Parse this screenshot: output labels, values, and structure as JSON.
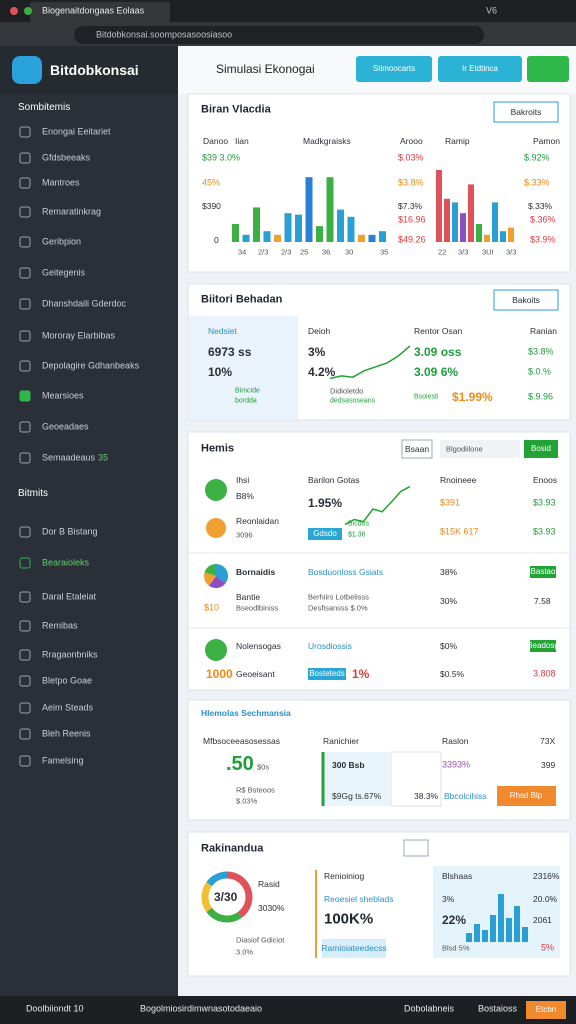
{
  "browser": {
    "tab_title": "Biogenaitdongaas Eolaas",
    "url": "Bitdobkonsai.soomposasoosiasoo",
    "badge": "V6"
  },
  "sidebar": {
    "brand": "Bitdobkonsai",
    "section1": "Sombitemis",
    "items1": [
      "Enongai Eeitariet",
      "Gfdsbeeaks",
      "Mantroes",
      "Remaratinkrag",
      "Geribpion",
      "Geitegenis",
      "Dhanshdaili Gderdoc",
      "Mororay Elarbibas",
      "Depolagire Gdhanbeaks",
      "Mearsioes",
      "Geoeadaes",
      "Semaadeaus"
    ],
    "badge": "35",
    "section2": "Bitmits",
    "items2": [
      "Dor B Bistang",
      "Bearaioleks",
      "Daral Etaleiat",
      "Remibas",
      "Rragaonbniks",
      "Bletpo Goae",
      "Aeim Steads",
      "Bleh Reenis",
      "Famelsing"
    ]
  },
  "header": {
    "title": "Simulasi Ekonogai",
    "buttons": [
      "Stimoocarts",
      "Ir Etdtinca"
    ]
  },
  "card1": {
    "title": "Biran Vlacdia",
    "button": "Bakroits",
    "texts": [
      "Danoo",
      "Iian",
      "Madkgraisks",
      "Arooo",
      "Ramip",
      "Pamon",
      "$39 3.0%",
      "45%",
      "$390",
      "0",
      "$.03%",
      "$3.8%",
      "$7.3%",
      "$16.96",
      "$49.26",
      "$.92%",
      "$.33%",
      "$.33%",
      "$.36%",
      "$3.9%",
      "34",
      "2/3",
      "2/3",
      "25",
      "36",
      "30",
      "35",
      "22",
      "3/3",
      "3UI",
      "3/3"
    ],
    "chart_left": {
      "values": [
        25,
        10,
        48,
        15,
        10,
        40,
        38,
        90,
        22,
        90,
        45,
        35,
        10,
        10,
        15
      ],
      "colors": [
        "#3cb043",
        "#2a9fd6",
        "#3cb043",
        "#2a9fd6",
        "#f0a030",
        "#2a9fd6",
        "#2a9fd6",
        "#2a7fd6",
        "#3cb043",
        "#3cb043",
        "#2a9fd6",
        "#2a9fd6",
        "#f0a030",
        "#2a7fd6",
        "#2a9fd6"
      ]
    },
    "chart_right": {
      "values": [
        100,
        60,
        55,
        40,
        80,
        25,
        10,
        55,
        15,
        20
      ],
      "colors": [
        "#e0525a",
        "#e0525a",
        "#2a9fd6",
        "#8a4fc1",
        "#e0525a",
        "#3cb043",
        "#f0a030",
        "#2a9fd6",
        "#2a9fd6",
        "#f0a030"
      ]
    }
  },
  "card2": {
    "title": "Biitori Behadan",
    "button": "Bakoits",
    "texts": [
      "Nedsiet",
      "6973 ss",
      "10%",
      "Bimcide",
      "bordda",
      "Deioh",
      "3%",
      "4.2%",
      "Didioletdo",
      "dedsasoseans",
      "Rentor Osan",
      "3.09 oss",
      "3.09 6%",
      "Bsoiesti",
      "$1.99%",
      "Ranian",
      "$3.8%",
      "$.0.%",
      "$.9.96"
    ],
    "sparkline": [
      10,
      14,
      12,
      22,
      28,
      34,
      45,
      60
    ]
  },
  "card3": {
    "title": "Hemis",
    "input": "Bsaan",
    "search": "Blgodiilone",
    "button": "Bosid",
    "texts": [
      "Ihsi",
      "B8%",
      "Reonlaidan",
      "3096",
      "Barilon Gotas",
      "1.95%",
      "Bicdos",
      "$1.36",
      "Rnoineee",
      "$391",
      "$15K 617",
      "Enoos",
      "$3.93",
      "$3.93",
      "Bornaidis",
      "Bantie",
      "Bseodlbiniss",
      "$10",
      "Bosduonloss Gsiats",
      "Berhiirs Lotbelisss",
      "Desfisansss $.0%",
      "38%",
      "30%",
      "7.58",
      "Nolensogas",
      "1000",
      "Geoeisant",
      "Urosdiossis",
      "1%",
      "$0%",
      "$0.5%",
      "3.808"
    ],
    "buttons": [
      "Gdsdo",
      "Bastao",
      "Bosteteds",
      "Beadosg"
    ],
    "sparkline": [
      8,
      15,
      12,
      30,
      26,
      40,
      55,
      62
    ],
    "pie": {
      "values": [
        35,
        25,
        20,
        20
      ],
      "colors": [
        "#2a9fd6",
        "#8a4fc1",
        "#f0a030",
        "#3cb043"
      ]
    }
  },
  "card4": {
    "title": "Hlemolas Sechmansia",
    "texts": [
      "Mfbsoceeasosessas",
      "Ranichier",
      "Raslon",
      "73X",
      ".50",
      "$0s",
      "R$ Bsteoos",
      "$.03%",
      "300 Bsb",
      "$9Gg ts.67%",
      "3393%",
      "38.3%",
      "Bbcolcihiss",
      "399"
    ],
    "button": "Rhsd Blp"
  },
  "card5": {
    "title": "Rakinandua",
    "texts": [
      "3/30",
      "Rasid",
      "3030%",
      "Diasiof Gdiciot",
      "3.0%",
      "Renioiniog",
      "Reoesiel sheblads",
      "100K%",
      "Blshaas",
      "2316%",
      "3%",
      "20.0%",
      "22%",
      "2061",
      "Blsd 5%",
      "5%"
    ],
    "button": "Ramioiateedecss",
    "donut": {
      "values": [
        40,
        25,
        20,
        15
      ],
      "colors": [
        "#e0525a",
        "#3cb043",
        "#f0c030",
        "#2a9fd6"
      ]
    },
    "bars": {
      "values": [
        15,
        30,
        20,
        45,
        80,
        40,
        60,
        25
      ],
      "color": "#2a9fd6"
    }
  },
  "footer": {
    "texts": [
      "Doolbiiondt 10",
      "Bogolmiosirdimwnasotodaeaio",
      "Dobolabneis",
      "Bostaioss"
    ],
    "button": "Etcbn"
  }
}
